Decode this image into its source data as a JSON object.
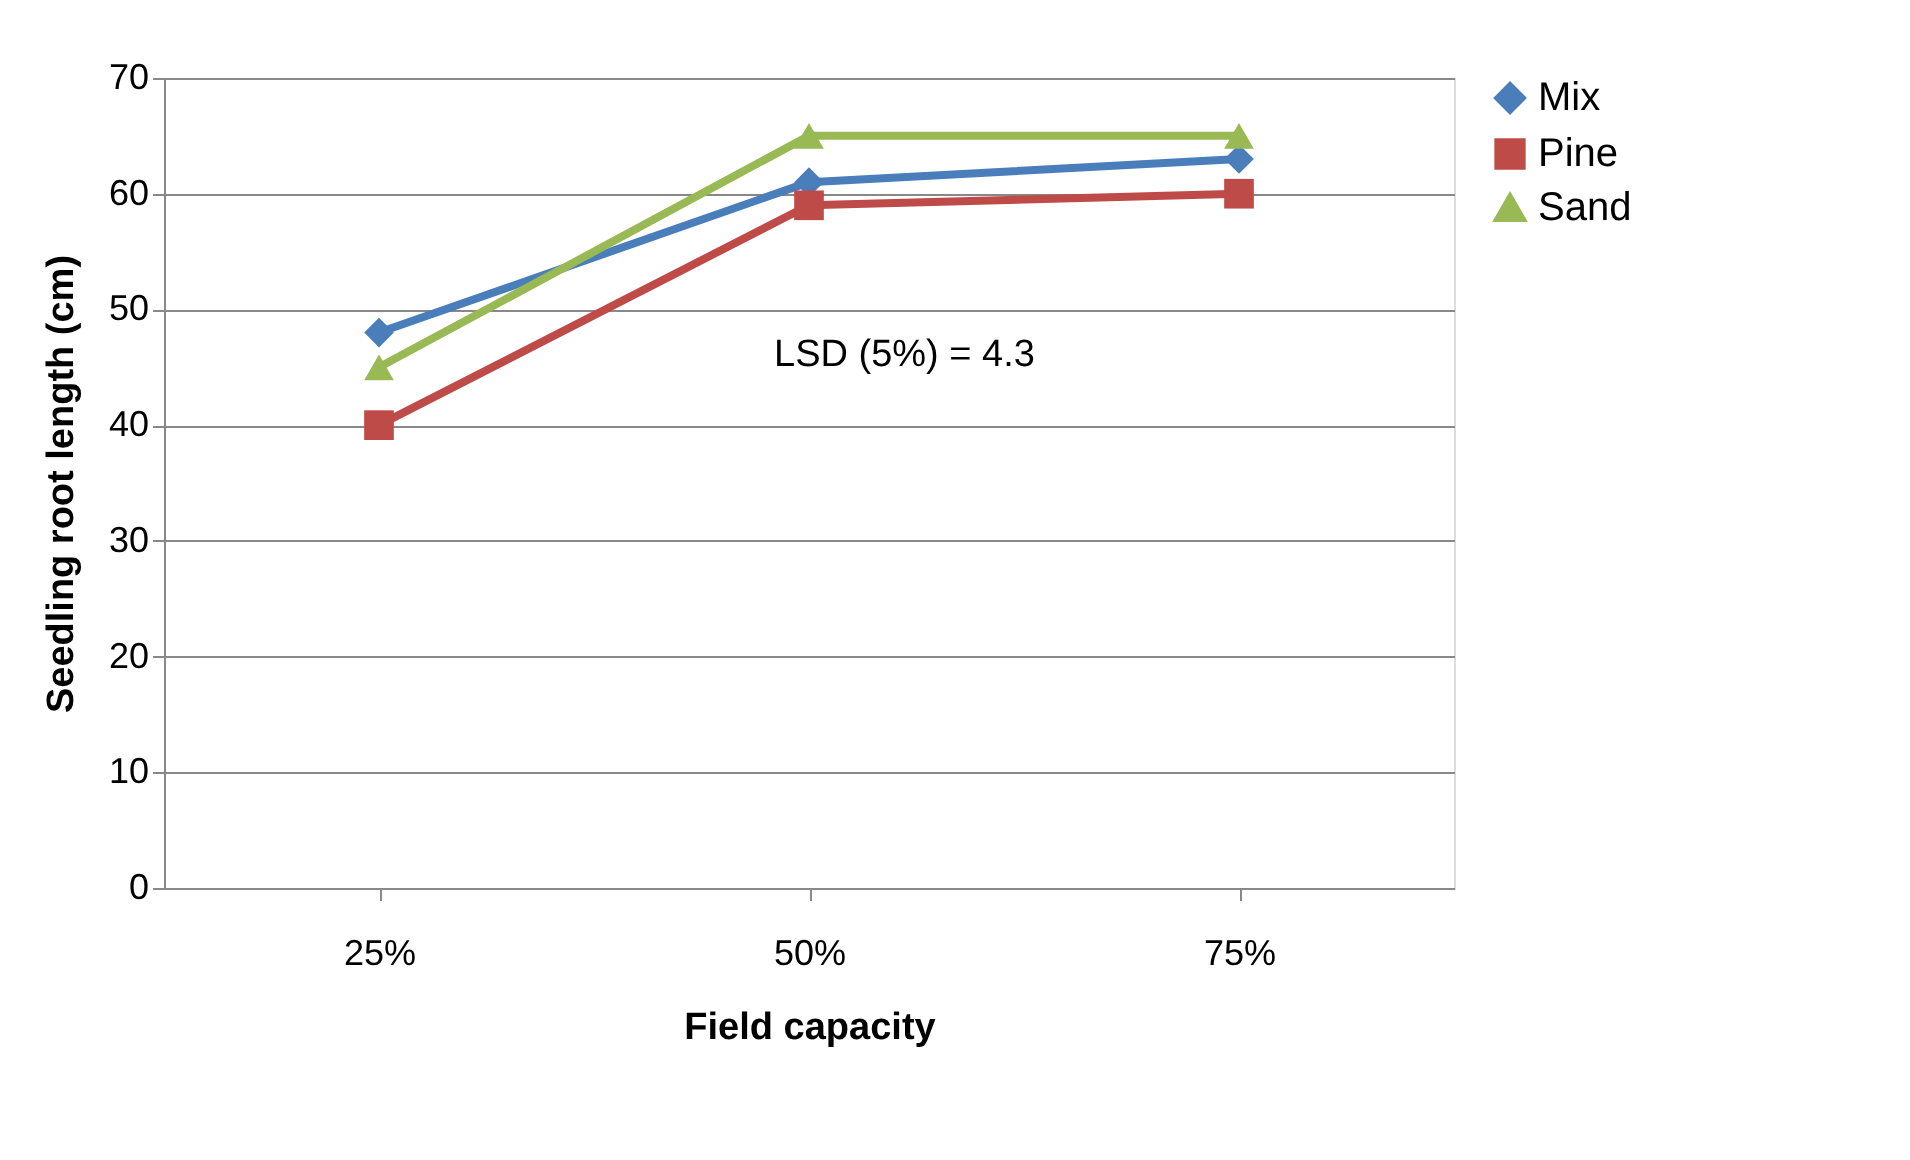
{
  "chart_data": {
    "type": "line",
    "xlabel": "Field capacity",
    "ylabel": "Seedling root length (cm)",
    "categories": [
      "25%",
      "50%",
      "75%"
    ],
    "series": [
      {
        "name": "Mix",
        "color": "#4a7ebb",
        "marker": "diamond",
        "values": [
          48,
          61,
          63
        ]
      },
      {
        "name": "Pine",
        "color": "#be4b48",
        "marker": "square",
        "values": [
          40,
          59,
          60
        ]
      },
      {
        "name": "Sand",
        "color": "#98b954",
        "marker": "triangle",
        "values": [
          45,
          65,
          65
        ]
      }
    ],
    "ylim": [
      0,
      70
    ],
    "yticks": [
      0,
      10,
      20,
      30,
      40,
      50,
      60,
      70
    ],
    "grid": "y",
    "legend": "right",
    "annotations": [
      "LSD (5%) = 4.3"
    ]
  }
}
